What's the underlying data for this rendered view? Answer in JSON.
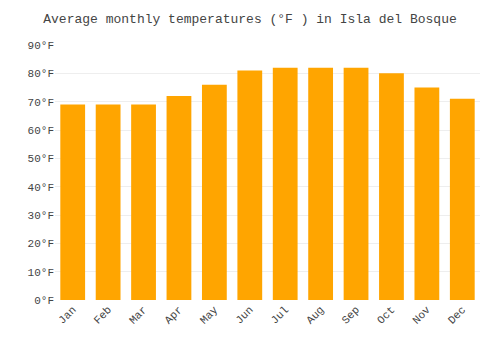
{
  "chart_data": {
    "type": "bar",
    "title": "Average monthly temperatures (°F ) in Isla del Bosque",
    "categories": [
      "Jan",
      "Feb",
      "Mar",
      "Apr",
      "May",
      "Jun",
      "Jul",
      "Aug",
      "Sep",
      "Oct",
      "Nov",
      "Dec"
    ],
    "values": [
      69,
      69,
      69,
      72,
      76,
      81,
      82,
      82,
      82,
      80,
      75,
      71
    ],
    "color": "#FFA500",
    "ylim": [
      0,
      90
    ],
    "yticks": [
      {
        "value": 0,
        "label": "0°F"
      },
      {
        "value": 10,
        "label": "10°F"
      },
      {
        "value": 20,
        "label": "20°F"
      },
      {
        "value": 30,
        "label": "30°F"
      },
      {
        "value": 40,
        "label": "40°F"
      },
      {
        "value": 50,
        "label": "50°F"
      },
      {
        "value": 60,
        "label": "60°F"
      },
      {
        "value": 70,
        "label": "70°F"
      },
      {
        "value": 80,
        "label": "80°F"
      },
      {
        "value": 90,
        "label": "90°F"
      }
    ],
    "grid": true
  }
}
